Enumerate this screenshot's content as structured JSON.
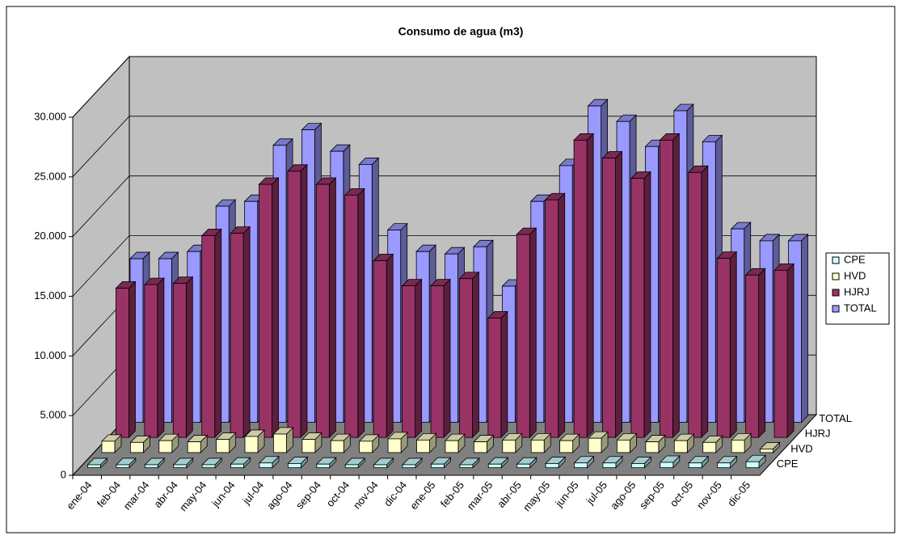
{
  "chart_data": {
    "type": "bar3d",
    "title": "Consumo de agua (m3)",
    "categories": [
      "ene-04",
      "feb-04",
      "mar-04",
      "abr-04",
      "may-04",
      "jun-04",
      "jul-04",
      "ago-04",
      "sep-04",
      "oct-04",
      "nov-04",
      "dic-04",
      "ene-05",
      "feb-05",
      "mar-05",
      "abr-05",
      "may-05",
      "jun-05",
      "jul-05",
      "ago-05",
      "sep-05",
      "oct-05",
      "nov-05",
      "dic-05"
    ],
    "series": [
      {
        "name": "CPE",
        "color": "#ccffff",
        "values": [
          250,
          250,
          250,
          250,
          250,
          300,
          400,
          350,
          300,
          250,
          250,
          250,
          300,
          250,
          300,
          300,
          350,
          400,
          400,
          350,
          450,
          400,
          400,
          500
        ]
      },
      {
        "name": "HVD",
        "color": "#ffffcc",
        "values": [
          950,
          850,
          1000,
          900,
          1100,
          1350,
          1550,
          1100,
          1000,
          950,
          1150,
          1050,
          1000,
          900,
          1050,
          1050,
          1000,
          1200,
          1050,
          900,
          1000,
          850,
          1050,
          300
        ]
      },
      {
        "name": "HJRJ",
        "color": "#993366",
        "values": [
          12500,
          12800,
          12900,
          16900,
          17100,
          21200,
          22300,
          21200,
          20300,
          14800,
          12700,
          12700,
          13300,
          10000,
          17000,
          19900,
          24900,
          23400,
          21700,
          24900,
          22200,
          15000,
          13600,
          14000
        ]
      },
      {
        "name": "TOTAL",
        "color": "#9999ff",
        "values": [
          13700,
          13700,
          14300,
          18100,
          18500,
          23200,
          24500,
          22700,
          21600,
          16100,
          14300,
          14100,
          14700,
          11400,
          18500,
          21500,
          26500,
          25200,
          23100,
          26100,
          23500,
          16200,
          15200,
          15200
        ]
      }
    ],
    "ylim": [
      0,
      30000
    ],
    "yticks": [
      0,
      {
        "value": 5000,
        "label": "5.000"
      },
      {
        "value": 10000,
        "label": "10.000"
      },
      {
        "value": 15000,
        "label": "15.000"
      },
      {
        "value": 20000,
        "label": "20.000"
      },
      {
        "value": 25000,
        "label": "25.000"
      },
      {
        "value": 30000,
        "label": "30.000"
      }
    ],
    "grid": true,
    "legend": "right"
  }
}
